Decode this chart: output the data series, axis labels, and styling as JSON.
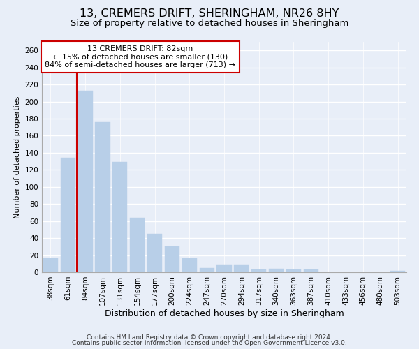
{
  "title": "13, CREMERS DRIFT, SHERINGHAM, NR26 8HY",
  "subtitle": "Size of property relative to detached houses in Sheringham",
  "xlabel": "Distribution of detached houses by size in Sheringham",
  "ylabel": "Number of detached properties",
  "categories": [
    "38sqm",
    "61sqm",
    "84sqm",
    "107sqm",
    "131sqm",
    "154sqm",
    "177sqm",
    "200sqm",
    "224sqm",
    "247sqm",
    "270sqm",
    "294sqm",
    "317sqm",
    "340sqm",
    "363sqm",
    "387sqm",
    "410sqm",
    "433sqm",
    "456sqm",
    "480sqm",
    "503sqm"
  ],
  "values": [
    16,
    134,
    213,
    176,
    129,
    64,
    45,
    30,
    16,
    5,
    9,
    9,
    3,
    4,
    3,
    3,
    0,
    0,
    0,
    0,
    2
  ],
  "bar_color": "#b8cfe8",
  "bar_edge_color": "#b8cfe8",
  "background_color": "#e8eef8",
  "grid_color": "#ffffff",
  "property_line_color": "#cc0000",
  "annotation_text": "13 CREMERS DRIFT: 82sqm\n← 15% of detached houses are smaller (130)\n84% of semi-detached houses are larger (713) →",
  "annotation_box_color": "#ffffff",
  "annotation_border_color": "#cc0000",
  "ylim": [
    0,
    270
  ],
  "yticks": [
    0,
    20,
    40,
    60,
    80,
    100,
    120,
    140,
    160,
    180,
    200,
    220,
    240,
    260
  ],
  "footer_line1": "Contains HM Land Registry data © Crown copyright and database right 2024.",
  "footer_line2": "Contains public sector information licensed under the Open Government Licence v3.0.",
  "title_fontsize": 11.5,
  "subtitle_fontsize": 9.5,
  "xlabel_fontsize": 9,
  "ylabel_fontsize": 8,
  "tick_fontsize": 7.5,
  "annotation_fontsize": 8,
  "footer_fontsize": 6.5
}
